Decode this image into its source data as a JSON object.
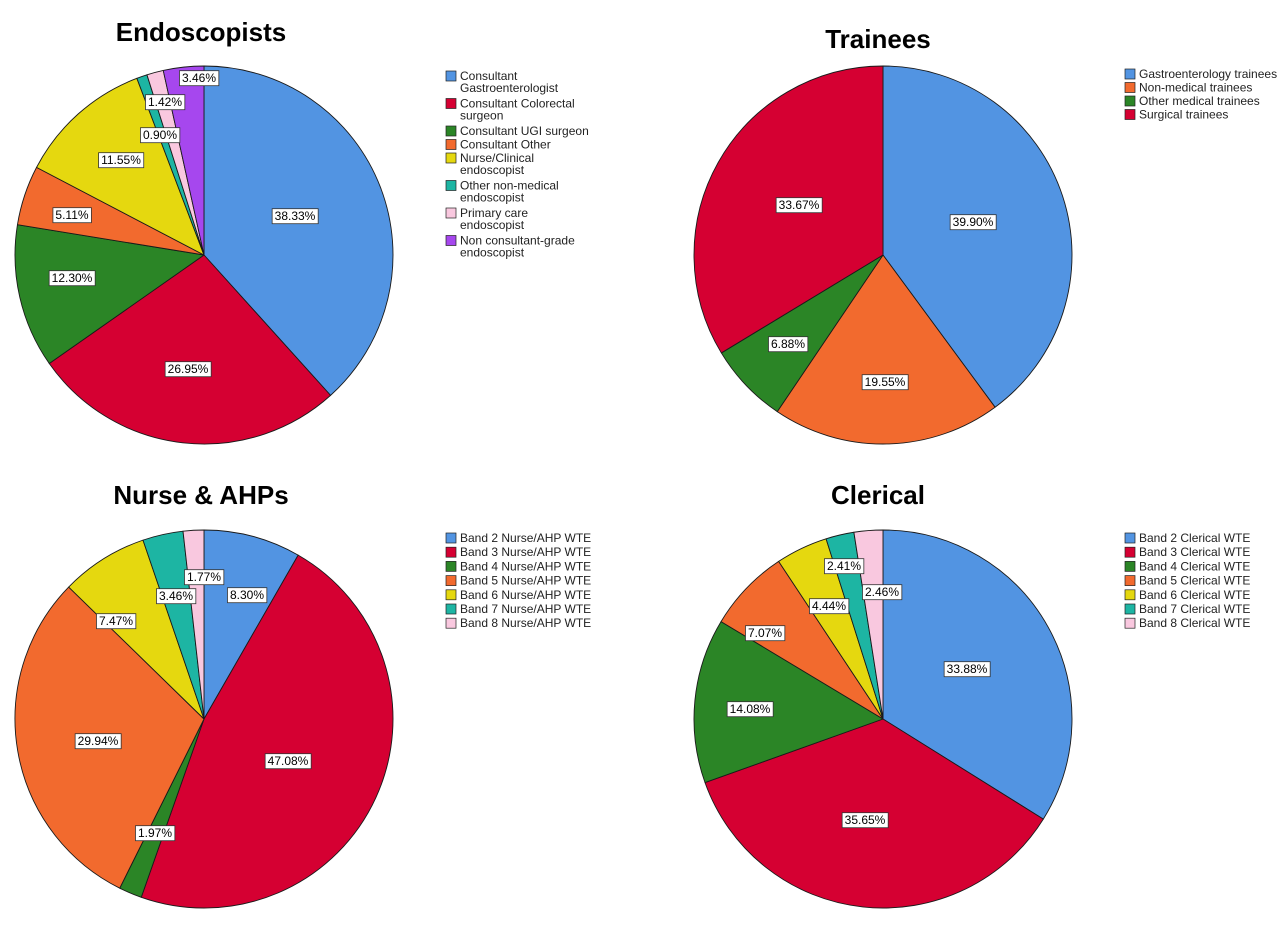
{
  "chart_data": [
    {
      "type": "pie",
      "title": "Endoscopists",
      "slices": [
        {
          "label": "Consultant Gastroenterologist",
          "value": 38.33,
          "display": "38.33%",
          "color": "#5294E2"
        },
        {
          "label": "Consultant Colorectal surgeon",
          "value": 26.95,
          "display": "26.95%",
          "color": "#D50032"
        },
        {
          "label": "Consultant UGI surgeon",
          "value": 12.3,
          "display": "12.30%",
          "color": "#2B8526"
        },
        {
          "label": "Consultant Other",
          "value": 5.11,
          "display": "5.11%",
          "color": "#F26A2E"
        },
        {
          "label": "Nurse/Clinical endoscopist",
          "value": 11.55,
          "display": "11.55%",
          "color": "#E5D80F"
        },
        {
          "label": "Other non-medical endoscopist",
          "value": 0.9,
          "display": "0.90%",
          "color": "#1DB5A3"
        },
        {
          "label": "Primary care endoscopist",
          "value": 1.42,
          "display": "1.42%",
          "color": "#F9C8DF"
        },
        {
          "label": "Non consultant-grade endoscopist",
          "value": 3.46,
          "display": "3.46%",
          "color": "#A647EE"
        }
      ]
    },
    {
      "type": "pie",
      "title": "Trainees",
      "slices": [
        {
          "label": "Gastroenterology trainees",
          "value": 39.9,
          "display": "39.90%",
          "color": "#5294E2"
        },
        {
          "label": "Non-medical trainees",
          "value": 19.55,
          "display": "19.55%",
          "color": "#F26A2E"
        },
        {
          "label": "Other medical trainees",
          "value": 6.88,
          "display": "6.88%",
          "color": "#2B8526"
        },
        {
          "label": "Surgical trainees",
          "value": 33.67,
          "display": "33.67%",
          "color": "#D50032"
        }
      ]
    },
    {
      "type": "pie",
      "title": "Nurse & AHPs",
      "slices": [
        {
          "label": "Band 2 Nurse/AHP WTE",
          "value": 8.3,
          "display": "8.30%",
          "color": "#5294E2"
        },
        {
          "label": "Band 3 Nurse/AHP WTE",
          "value": 47.08,
          "display": "47.08%",
          "color": "#D50032"
        },
        {
          "label": "Band 4 Nurse/AHP WTE",
          "value": 1.97,
          "display": "1.97%",
          "color": "#2B8526"
        },
        {
          "label": "Band 5 Nurse/AHP WTE",
          "value": 29.94,
          "display": "29.94%",
          "color": "#F26A2E"
        },
        {
          "label": "Band 6 Nurse/AHP WTE",
          "value": 7.47,
          "display": "7.47%",
          "color": "#E5D80F"
        },
        {
          "label": "Band 7 Nurse/AHP WTE",
          "value": 3.46,
          "display": "3.46%",
          "color": "#1DB5A3"
        },
        {
          "label": "Band 8 Nurse/AHP WTE",
          "value": 1.77,
          "display": "1.77%",
          "color": "#F9C8DF"
        }
      ]
    },
    {
      "type": "pie",
      "title": "Clerical",
      "slices": [
        {
          "label": "Band 2 Clerical WTE",
          "value": 33.88,
          "display": "33.88%",
          "color": "#5294E2"
        },
        {
          "label": "Band 3 Clerical WTE",
          "value": 35.65,
          "display": "35.65%",
          "color": "#D50032"
        },
        {
          "label": "Band 4 Clerical WTE",
          "value": 14.08,
          "display": "14.08%",
          "color": "#2B8526"
        },
        {
          "label": "Band 5 Clerical WTE",
          "value": 7.07,
          "display": "7.07%",
          "color": "#F26A2E"
        },
        {
          "label": "Band 6 Clerical WTE",
          "value": 4.44,
          "display": "4.44%",
          "color": "#E5D80F"
        },
        {
          "label": "Band 7 Clerical WTE",
          "value": 2.41,
          "display": "2.41%",
          "color": "#1DB5A3"
        },
        {
          "label": "Band 8 Clerical WTE",
          "value": 2.46,
          "display": "2.46%",
          "color": "#F9C8DF"
        }
      ]
    }
  ]
}
